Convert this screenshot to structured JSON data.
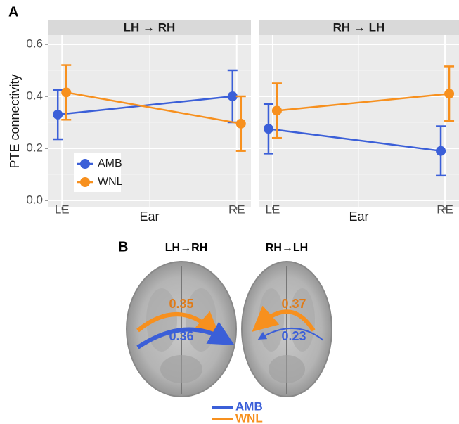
{
  "chart_data": [
    {
      "type": "errorbar-line",
      "panel_label": "A",
      "title": "LH → RH",
      "xlabel": "Ear",
      "ylabel": "PTE connectivity",
      "categories": [
        "LE",
        "RE"
      ],
      "series": [
        {
          "name": "AMB",
          "color": "#3b5fd8",
          "values": [
            0.33,
            0.4
          ],
          "errors": [
            0.095,
            0.1
          ]
        },
        {
          "name": "WNL",
          "color": "#f7901e",
          "values": [
            0.415,
            0.295
          ],
          "errors": [
            0.105,
            0.105
          ]
        }
      ],
      "ylim": [
        -0.027,
        0.635
      ],
      "yticks": [
        {
          "value": 0,
          "label": "0.0"
        },
        0.2,
        0.4,
        0.6
      ],
      "grid": true,
      "legend": "bottom-left"
    },
    {
      "type": "errorbar-line",
      "title": "RH → LH",
      "xlabel": "Ear",
      "categories": [
        "LE",
        "RE"
      ],
      "series": [
        {
          "name": "AMB",
          "color": "#3b5fd8",
          "values": [
            0.275,
            0.19
          ],
          "errors": [
            0.095,
            0.095
          ]
        },
        {
          "name": "WNL",
          "color": "#f7901e",
          "values": [
            0.345,
            0.41
          ],
          "errors": [
            0.105,
            0.105
          ]
        }
      ],
      "ylim": [
        -0.027,
        0.635
      ],
      "yticks": [
        {
          "value": 0,
          "label": "0.0"
        },
        0.2,
        0.4,
        0.6
      ],
      "grid": true
    }
  ],
  "panel_b": {
    "label": "B",
    "brains": [
      {
        "title": "LH→RH",
        "wnl": 0.35,
        "amb": 0.36
      },
      {
        "title": "RH→LH",
        "wnl": 0.37,
        "amb": 0.23
      }
    ],
    "legend": [
      "AMB",
      "WNL"
    ]
  }
}
